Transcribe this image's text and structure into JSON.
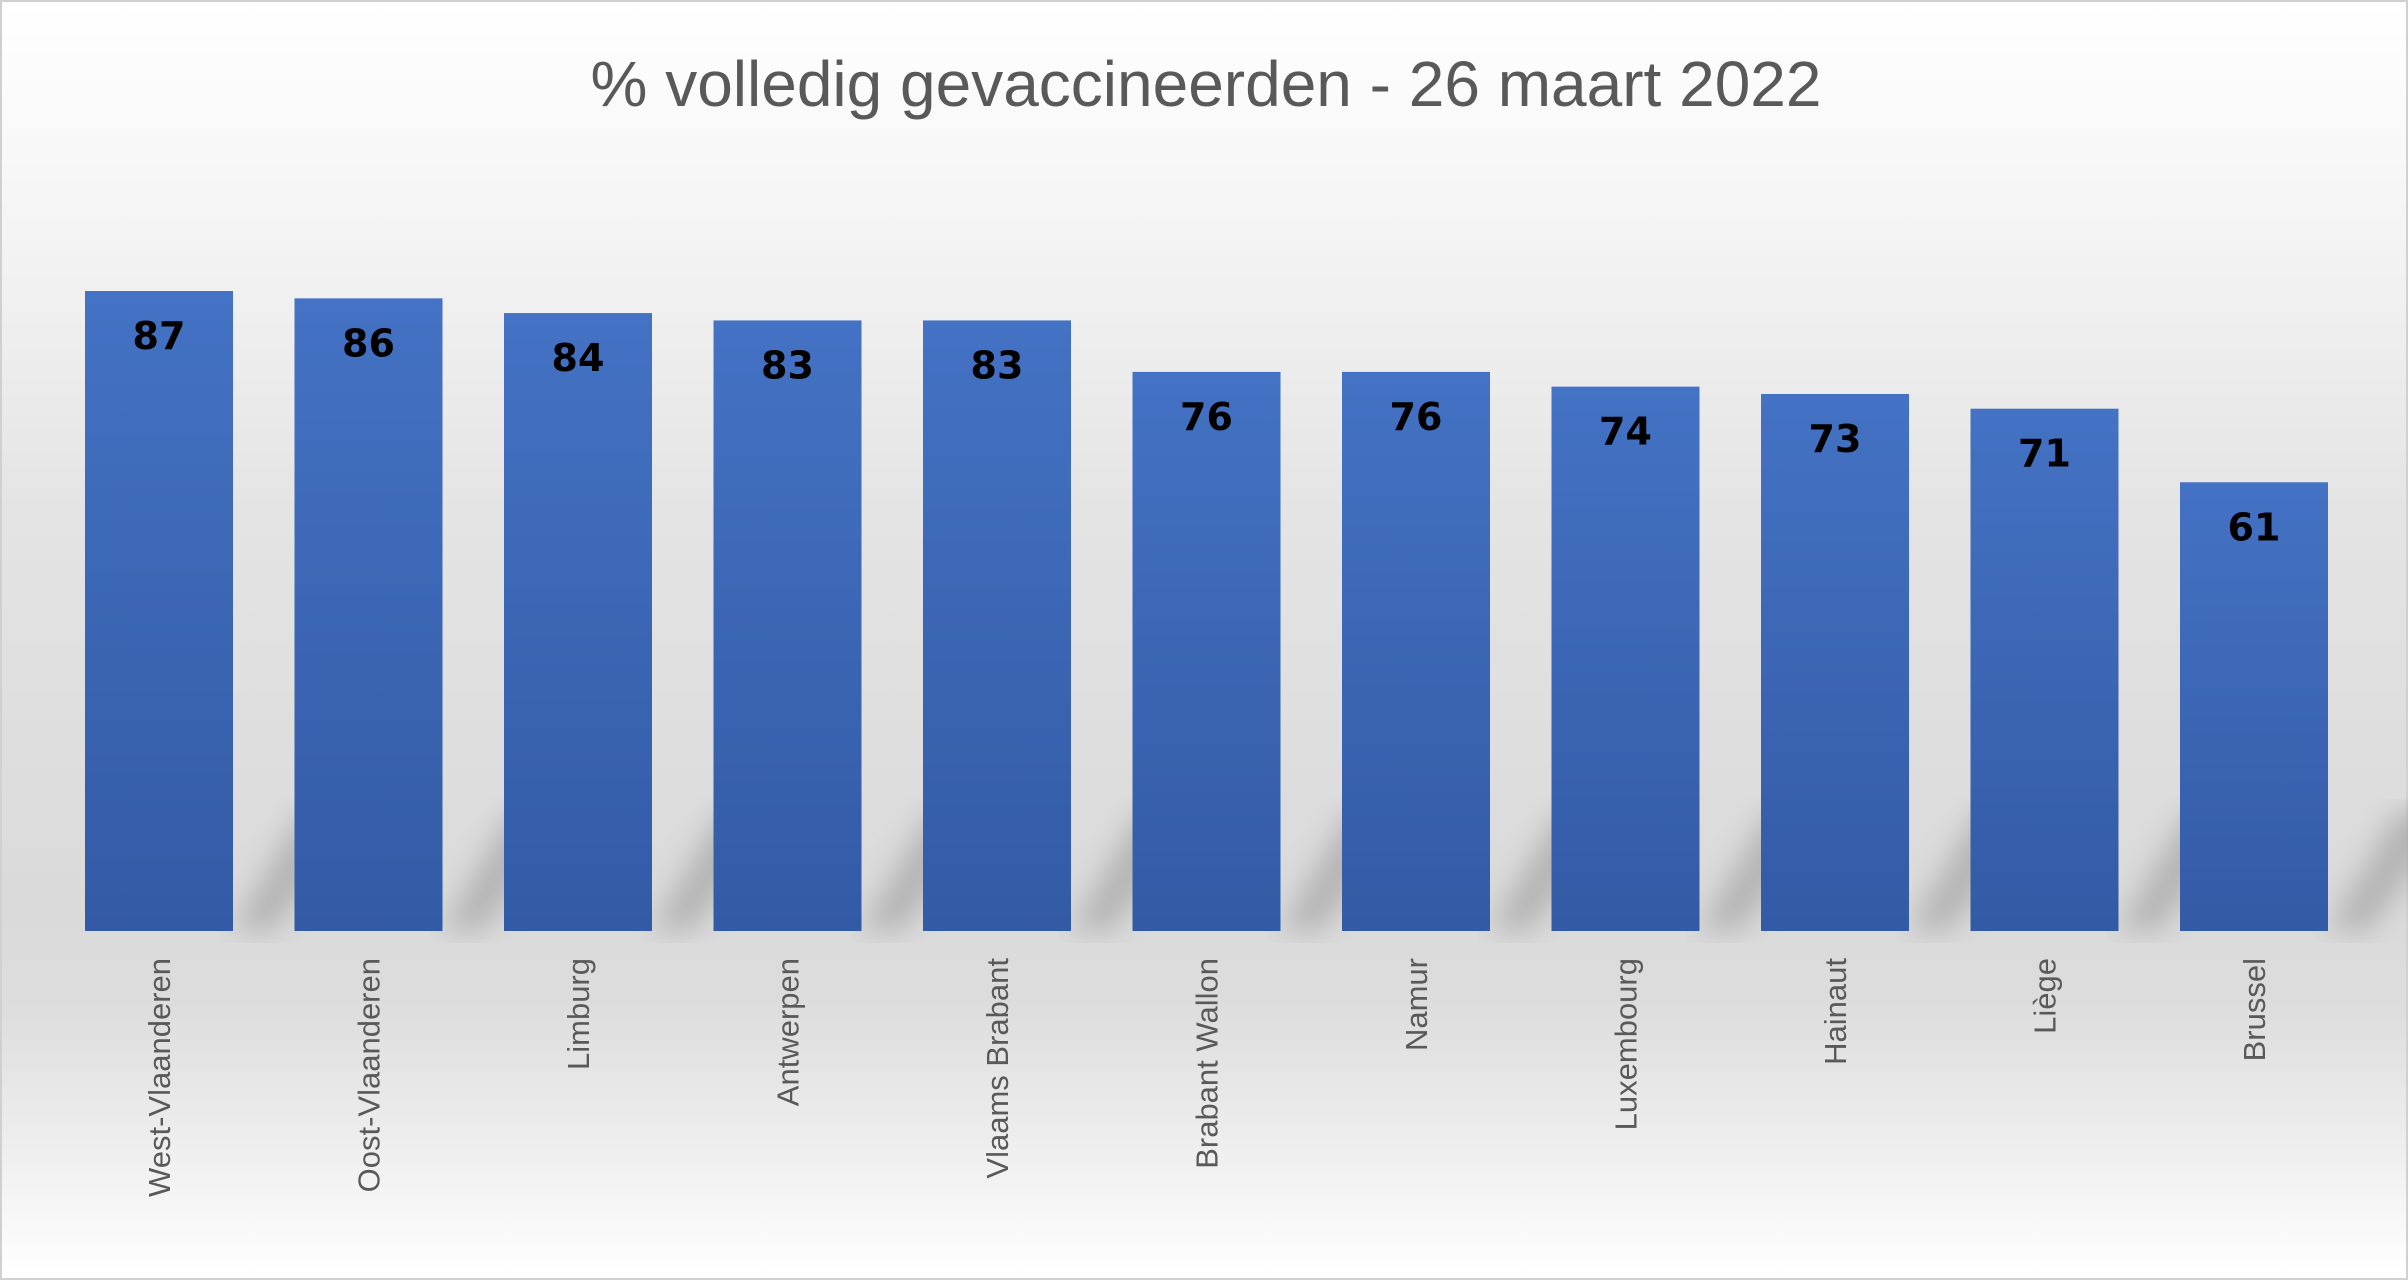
{
  "chart_data": {
    "type": "bar",
    "title": "% volledig gevaccineerden - 26 maart 2022",
    "xlabel": "",
    "ylabel": "",
    "ylim": [
      0,
      87
    ],
    "grid": false,
    "legend": "none",
    "categories": [
      "West-Vlaanderen",
      "Oost-Vlaanderen",
      "Limburg",
      "Antwerpen",
      "Vlaams Brabant",
      "Brabant Wallon",
      "Namur",
      "Luxembourg",
      "Hainaut",
      "Liège",
      "Brussel"
    ],
    "values": [
      87,
      86,
      84,
      83,
      83,
      76,
      76,
      74,
      73,
      71,
      61
    ],
    "colors": {
      "bar_top": "#4472c4",
      "bar_bottom": "#335aa5",
      "label": "#000000",
      "axis_text": "#595959"
    }
  }
}
